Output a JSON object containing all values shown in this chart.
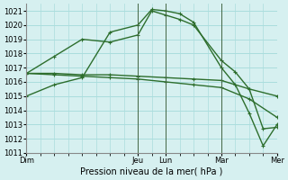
{
  "background_color": "#d6f0f0",
  "grid_color": "#aadddd",
  "line_color": "#2d6e2d",
  "marker_color": "#2d6e2d",
  "xlabel": "Pression niveau de la mer( hPa )",
  "ylim": [
    1011,
    1021.5
  ],
  "yticks": [
    1011,
    1012,
    1013,
    1014,
    1015,
    1016,
    1017,
    1018,
    1019,
    1020,
    1021
  ],
  "day_labels": [
    "Dim",
    "Jeu",
    "Lun",
    "Mar",
    "Mer"
  ],
  "day_positions": [
    0,
    4,
    5,
    7,
    9
  ],
  "series": [
    {
      "x": [
        0,
        1,
        2,
        3,
        4,
        4.5,
        5,
        5.5,
        6,
        7,
        7.5,
        8,
        8.5,
        9
      ],
      "y": [
        1015.0,
        1015.8,
        1016.3,
        1019.5,
        1020.0,
        1021.1,
        1021.0,
        1020.8,
        1020.2,
        1017.0,
        1015.8,
        1013.8,
        1011.5,
        1013.0
      ]
    },
    {
      "x": [
        0,
        1,
        2,
        3,
        4,
        4.5,
        5,
        5.5,
        6,
        7,
        7.5,
        8,
        8.5,
        9
      ],
      "y": [
        1016.6,
        1017.8,
        1019.0,
        1018.8,
        1019.3,
        1021.0,
        1020.7,
        1020.4,
        1020.0,
        1017.5,
        1016.7,
        1015.5,
        1012.7,
        1012.8
      ]
    },
    {
      "x": [
        0,
        1,
        2,
        3,
        4,
        5,
        6,
        7,
        8,
        9
      ],
      "y": [
        1016.6,
        1016.5,
        1016.4,
        1016.3,
        1016.2,
        1016.0,
        1015.8,
        1015.6,
        1014.8,
        1013.5
      ]
    },
    {
      "x": [
        0,
        1,
        2,
        3,
        4,
        5,
        6,
        7,
        8,
        9
      ],
      "y": [
        1016.6,
        1016.6,
        1016.5,
        1016.5,
        1016.4,
        1016.3,
        1016.2,
        1016.1,
        1015.5,
        1015.0
      ]
    }
  ]
}
